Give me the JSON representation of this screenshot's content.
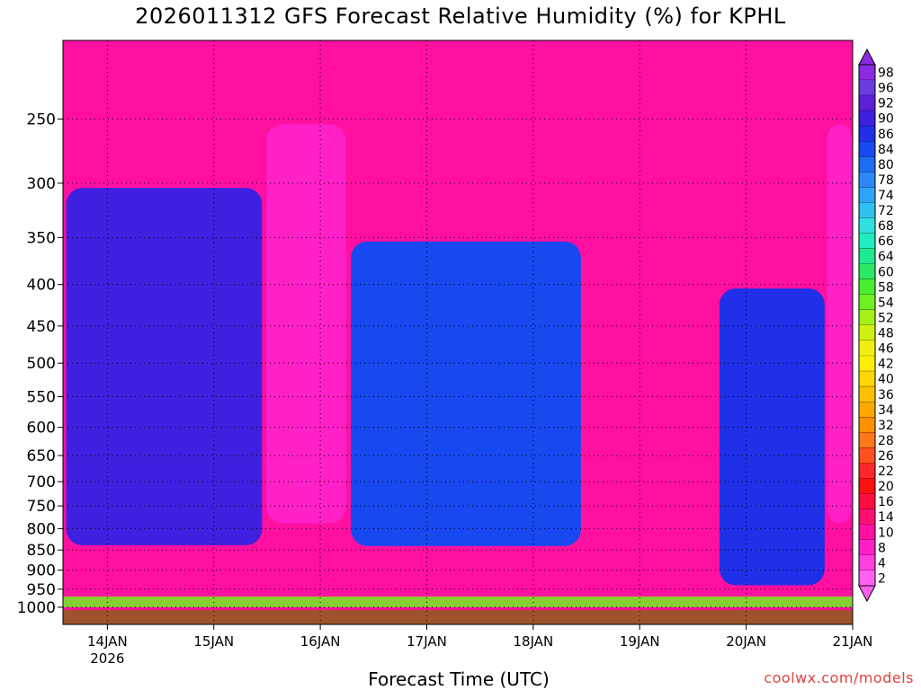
{
  "chart_data": {
    "type": "heatmap",
    "title": "2026011312 GFS Forecast Relative Humidity (%) for KPHL",
    "xlabel": "Forecast Time (UTC)",
    "ylabel": "",
    "y_scale": "pressure (log)",
    "y_range_hpa": [
      200,
      1050
    ],
    "y_ticks": [
      250,
      300,
      350,
      400,
      450,
      500,
      550,
      600,
      650,
      700,
      750,
      800,
      850,
      900,
      950,
      1000
    ],
    "x_range": [
      "2026-01-13 14Z",
      "2026-01-21 00Z"
    ],
    "x_ticks": [
      "14JAN",
      "15JAN",
      "16JAN",
      "17JAN",
      "18JAN",
      "19JAN",
      "20JAN",
      "21JAN"
    ],
    "x_ticks_days": [
      0.417,
      1.417,
      2.417,
      3.417,
      4.417,
      5.417,
      6.417,
      7.417
    ],
    "x_year_label": "2026",
    "grid": true,
    "colorbar": {
      "position": "right",
      "labels": [
        "98",
        "96",
        "92",
        "90",
        "86",
        "84",
        "80",
        "78",
        "74",
        "72",
        "68",
        "66",
        "64",
        "60",
        "58",
        "54",
        "52",
        "48",
        "46",
        "42",
        "40",
        "36",
        "34",
        "32",
        "28",
        "26",
        "22",
        "20",
        "16",
        "14",
        "10",
        "8",
        "4",
        "2"
      ],
      "colors": [
        "#8a2be2",
        "#6a3be0",
        "#5a1fd6",
        "#4020e0",
        "#2030e8",
        "#1848f0",
        "#1c6cf4",
        "#2c88f8",
        "#2ea4f6",
        "#30c0f0",
        "#2ee0e0",
        "#20ecc0",
        "#20e890",
        "#2ce864",
        "#48ee30",
        "#70f020",
        "#a4f018",
        "#d0f010",
        "#f0f010",
        "#fff000",
        "#ffd800",
        "#ffc000",
        "#ffa800",
        "#ff9000",
        "#ff7818",
        "#ff5020",
        "#ff2828",
        "#ff1010",
        "#ff0c40",
        "#ff1070",
        "#ff10a0",
        "#ff20c8",
        "#ff40e0",
        "#ff60f0"
      ]
    },
    "ground_color": "#a0522d",
    "series_summary": [
      {
        "period": "13JAN 14Z - 15JAN 12Z",
        "band": "300-850 hPa",
        "rh_pct": 90
      },
      {
        "period": "15JAN 12Z - 16JAN 06Z",
        "band": "250-800 hPa",
        "rh_pct": 5
      },
      {
        "period": "16JAN 06Z - 18JAN 12Z",
        "band": "350-850 hPa",
        "rh_pct": 85
      },
      {
        "period": "18JAN 12Z - 19JAN 18Z",
        "band": "250-1000 hPa",
        "rh_pct": 8
      },
      {
        "period": "19JAN 18Z - 20JAN 18Z",
        "band": "400-950 hPa",
        "rh_pct": 88
      },
      {
        "period": "20JAN 18Z - 21JAN 00Z",
        "band": "250-800 hPa",
        "rh_pct": 6
      }
    ]
  },
  "credit": "coolwx.com/models"
}
